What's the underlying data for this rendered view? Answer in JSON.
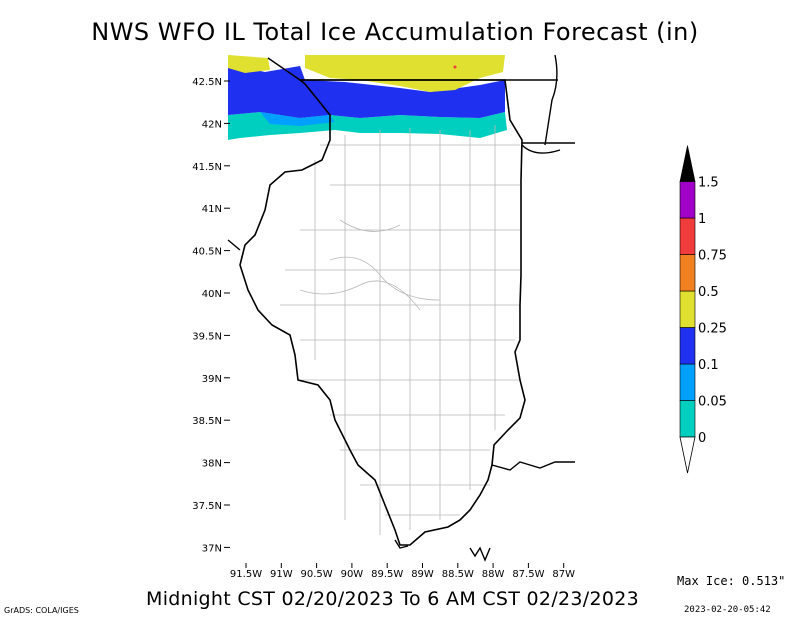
{
  "title": "NWS WFO IL Total Ice Accumulation Forecast (in)",
  "subtitle": "Midnight CST 02/20/2023 To 6 AM CST 02/23/2023",
  "max_ice": "Max Ice: 0.513\"",
  "credit": "GrADS: COLA/IGES",
  "timestamp": "2023-02-20-05:42",
  "lat_labels": [
    "42.5N",
    "42N",
    "41.5N",
    "41N",
    "40.5N",
    "40N",
    "39.5N",
    "39N",
    "38.5N",
    "38N",
    "37.5N",
    "37N"
  ],
  "lon_labels": [
    "91.5W",
    "91W",
    "90.5W",
    "90W",
    "89.5W",
    "89W",
    "88.5W",
    "88W",
    "87.5W",
    "87W"
  ],
  "legend": {
    "labels": [
      "0",
      "0.05",
      "0.1",
      "0.25",
      "0.5",
      "0.75",
      "1",
      "1.5"
    ],
    "colors": [
      "#00cfc0",
      "#00a0ff",
      "#2030f0",
      "#e0e030",
      "#f08020",
      "#f03c3c",
      "#a000c8",
      "#000000"
    ]
  },
  "colors": {
    "cyan": "#00cfc0",
    "lightblue": "#00a0ff",
    "blue": "#2030f0",
    "yellow": "#e0e030",
    "red": "#f03c3c"
  }
}
